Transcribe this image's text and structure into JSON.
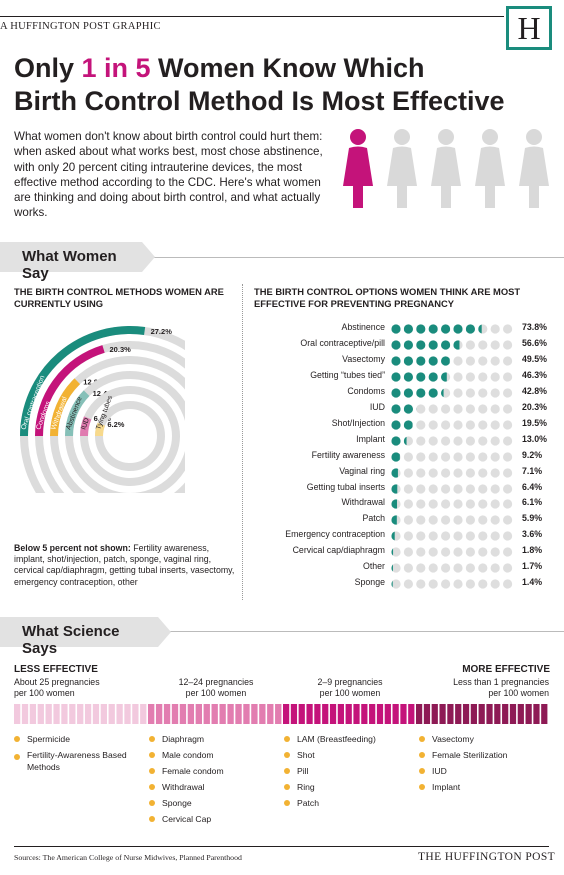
{
  "header": {
    "graphic_label": "A HUFFINGTON POST GRAPHIC",
    "logo_letter": "H"
  },
  "title": {
    "line1_pre": "Only ",
    "highlight": "1 in 5",
    "line1_post": " Women Know Which",
    "line2": "Birth Control Method Is Most Effective"
  },
  "intro": "What women don't know about birth control could hurt them: when asked about what works best, most chose abstinence, with only 20 percent citing intrauterine devices, the most effective method according to the CDC. Here's what women are thinking and doing about birth control, and what actually works.",
  "people": {
    "total": 5,
    "highlighted": 1,
    "colors": {
      "highlight": "#c4137a",
      "other": "#d9d9d9"
    }
  },
  "section1": {
    "title": "What Women Say"
  },
  "using": {
    "title": "THE BIRTH CONTROL METHODS WOMEN ARE CURRENTLY USING",
    "rings": [
      {
        "label": "Oral contraception",
        "value": "27.2%",
        "pct": 27.2,
        "color": "#1a8c7d"
      },
      {
        "label": "Condoms",
        "value": "20.3%",
        "pct": 20.3,
        "color": "#c4137a"
      },
      {
        "label": "Withdrawal",
        "value": "12.8%",
        "pct": 12.8,
        "color": "#f2b233"
      },
      {
        "label": "Abstinence",
        "value": "12.4%",
        "pct": 12.4,
        "color": "#86c0b8"
      },
      {
        "label": "IUD",
        "value": "6.4%",
        "pct": 6.4,
        "color": "#e07bb0"
      },
      {
        "label": "Tying tubes",
        "value": "6.2%",
        "pct": 6.2,
        "color": "#f7d98c"
      }
    ],
    "note_bold": "Below 5 percent not shown:",
    "note": " Fertility awareness, implant, shot/injection, patch, sponge, vaginal ring, cervical cap/diaphragm, getting tubal inserts, vasectomy, emergency contraception, other"
  },
  "effective": {
    "title": "THE BIRTH CONTROL OPTIONS WOMEN THINK ARE MOST EFFECTIVE FOR PREVENTING PREGNANCY",
    "dot_color": "#1a8c7d",
    "rows": [
      {
        "label": "Abstinence",
        "value": "73.8%",
        "pct": 73.8
      },
      {
        "label": "Oral contraceptive/pill",
        "value": "56.6%",
        "pct": 56.6
      },
      {
        "label": "Vasectomy",
        "value": "49.5%",
        "pct": 49.5
      },
      {
        "label": "Getting “tubes tied”",
        "value": "46.3%",
        "pct": 46.3
      },
      {
        "label": "Condoms",
        "value": "42.8%",
        "pct": 42.8
      },
      {
        "label": "IUD",
        "value": "20.3%",
        "pct": 20.3
      },
      {
        "label": "Shot/Injection",
        "value": "19.5%",
        "pct": 19.5
      },
      {
        "label": "Implant",
        "value": "13.0%",
        "pct": 13.0
      },
      {
        "label": "Fertility awareness",
        "value": "9.2%",
        "pct": 9.2
      },
      {
        "label": "Vaginal ring",
        "value": "7.1%",
        "pct": 7.1
      },
      {
        "label": "Getting tubal inserts",
        "value": "6.4%",
        "pct": 6.4
      },
      {
        "label": "Withdrawal",
        "value": "6.1%",
        "pct": 6.1
      },
      {
        "label": "Patch",
        "value": "5.9%",
        "pct": 5.9
      },
      {
        "label": "Emergency contraception",
        "value": "3.6%",
        "pct": 3.6
      },
      {
        "label": "Cervical cap/diaphragm",
        "value": "1.8%",
        "pct": 1.8
      },
      {
        "label": "Other",
        "value": "1.7%",
        "pct": 1.7
      },
      {
        "label": "Sponge",
        "value": "1.4%",
        "pct": 1.4
      }
    ]
  },
  "section2": {
    "title": "What Science Says"
  },
  "science": {
    "less": "LESS EFFECTIVE",
    "more": "MORE EFFECTIVE",
    "ranges": [
      {
        "l1": "About 25 pregnancies",
        "l2": "per 100 women"
      },
      {
        "l1": "12–24 pregnancies",
        "l2": "per 100 women"
      },
      {
        "l1": "2–9 pregnancies",
        "l2": "per 100 women"
      },
      {
        "l1": "Less than 1 pregnancies",
        "l2": "per 100 women"
      }
    ],
    "groups": [
      {
        "color": "#f2c9de",
        "items": [
          "Spermicide",
          "Fertility-Awareness Based Methods"
        ]
      },
      {
        "color": "#e27db0",
        "items": [
          "Diaphragm",
          "Male condom",
          "Female condom",
          "Withdrawal",
          "Sponge",
          "Cervical Cap"
        ]
      },
      {
        "color": "#c4137a",
        "items": [
          "LAM (Breastfeeding)",
          "Shot",
          "Pill",
          "Ring",
          "Patch"
        ]
      },
      {
        "color": "#8e1a55",
        "items": [
          "Vasectomy",
          "Female Sterilization",
          "IUD",
          "Implant"
        ]
      }
    ]
  },
  "footer": {
    "sources": "Sources: The American College of Nurse Midwives, Planned Parenthood",
    "brand": "THE HUFFINGTON POST"
  }
}
